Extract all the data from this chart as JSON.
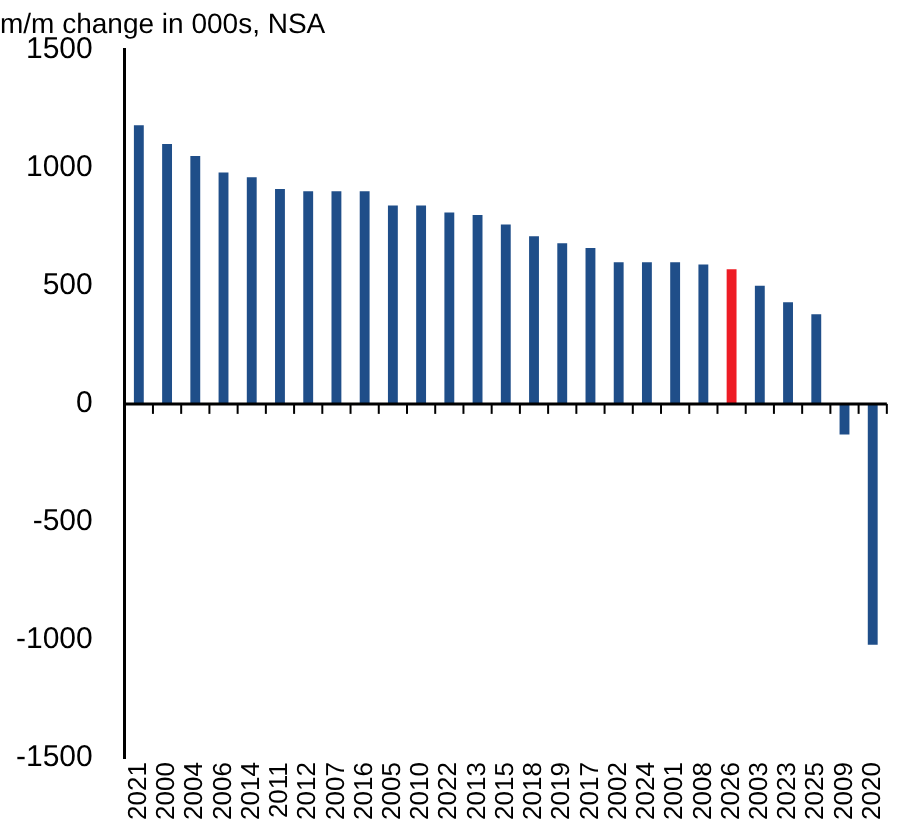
{
  "chart_data": {
    "type": "bar",
    "title": "m/m change in 000s, NSA",
    "categories": [
      "2021",
      "2000",
      "2004",
      "2006",
      "2014",
      "2011",
      "2012",
      "2007",
      "2016",
      "2005",
      "2010",
      "2022",
      "2013",
      "2015",
      "2018",
      "2019",
      "2017",
      "2002",
      "2024",
      "2001",
      "2008",
      "2026",
      "2003",
      "2023",
      "2025",
      "2009",
      "2020"
    ],
    "values": [
      1180,
      1100,
      1050,
      980,
      960,
      910,
      900,
      900,
      900,
      840,
      840,
      810,
      800,
      760,
      710,
      680,
      660,
      600,
      600,
      600,
      590,
      570,
      500,
      430,
      380,
      -130,
      -1020
    ],
    "colors": [
      "#1f4e89",
      "#1f4e89",
      "#1f4e89",
      "#1f4e89",
      "#1f4e89",
      "#1f4e89",
      "#1f4e89",
      "#1f4e89",
      "#1f4e89",
      "#1f4e89",
      "#1f4e89",
      "#1f4e89",
      "#1f4e89",
      "#1f4e89",
      "#1f4e89",
      "#1f4e89",
      "#1f4e89",
      "#1f4e89",
      "#1f4e89",
      "#1f4e89",
      "#1f4e89",
      "#ee1c25",
      "#1f4e89",
      "#1f4e89",
      "#1f4e89",
      "#1f4e89",
      "#1f4e89"
    ],
    "ylim": [
      -1500,
      1500
    ],
    "yticks": [
      -1500,
      -1000,
      -500,
      0,
      500,
      1000,
      1500
    ],
    "ref_lines": [
      {
        "axis": "y",
        "value": 0
      }
    ],
    "grid": false,
    "legend": false
  }
}
